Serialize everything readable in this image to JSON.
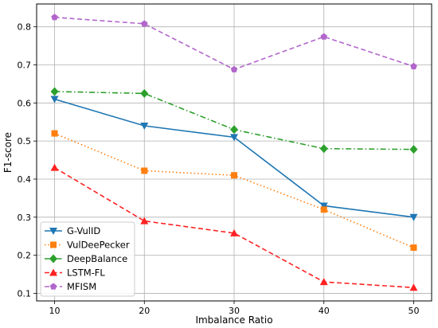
{
  "chart_data": {
    "type": "line",
    "title": "",
    "xlabel": "Imbalance Ratio",
    "ylabel": "F1-score",
    "x": [
      10,
      20,
      30,
      40,
      50
    ],
    "xlim": [
      8,
      52
    ],
    "ylim": [
      0.08,
      0.86
    ],
    "xticks": [
      "10",
      "20",
      "30",
      "40",
      "50"
    ],
    "yticks": [
      "0.1",
      "0.2",
      "0.3",
      "0.4",
      "0.5",
      "0.6",
      "0.7",
      "0.8"
    ],
    "ytick_values": [
      0.1,
      0.2,
      0.3,
      0.4,
      0.5,
      0.6,
      0.7,
      0.8
    ],
    "grid": true,
    "legend_position": "bottom-left",
    "series": [
      {
        "name": "G-VulID",
        "values": [
          0.61,
          0.54,
          0.51,
          0.33,
          0.3
        ],
        "color": "#1f77b4",
        "marker": "triangle-down",
        "dash": "solid"
      },
      {
        "name": "VulDeePecker",
        "values": [
          0.52,
          0.422,
          0.41,
          0.32,
          0.22
        ],
        "color": "#ff7f0e",
        "marker": "square",
        "dash": "dotted"
      },
      {
        "name": "DeepBalance",
        "values": [
          0.63,
          0.625,
          0.53,
          0.48,
          0.478
        ],
        "color": "#2ca02c",
        "marker": "diamond",
        "dash": "dashdot"
      },
      {
        "name": "LSTM-FL",
        "values": [
          0.43,
          0.29,
          0.258,
          0.13,
          0.115
        ],
        "color": "#ff2222",
        "marker": "triangle-up",
        "dash": "dashed"
      },
      {
        "name": "MFISM",
        "values": [
          0.825,
          0.808,
          0.688,
          0.774,
          0.696
        ],
        "color": "#b266cc",
        "marker": "pentagon",
        "dash": "dashed"
      }
    ]
  }
}
